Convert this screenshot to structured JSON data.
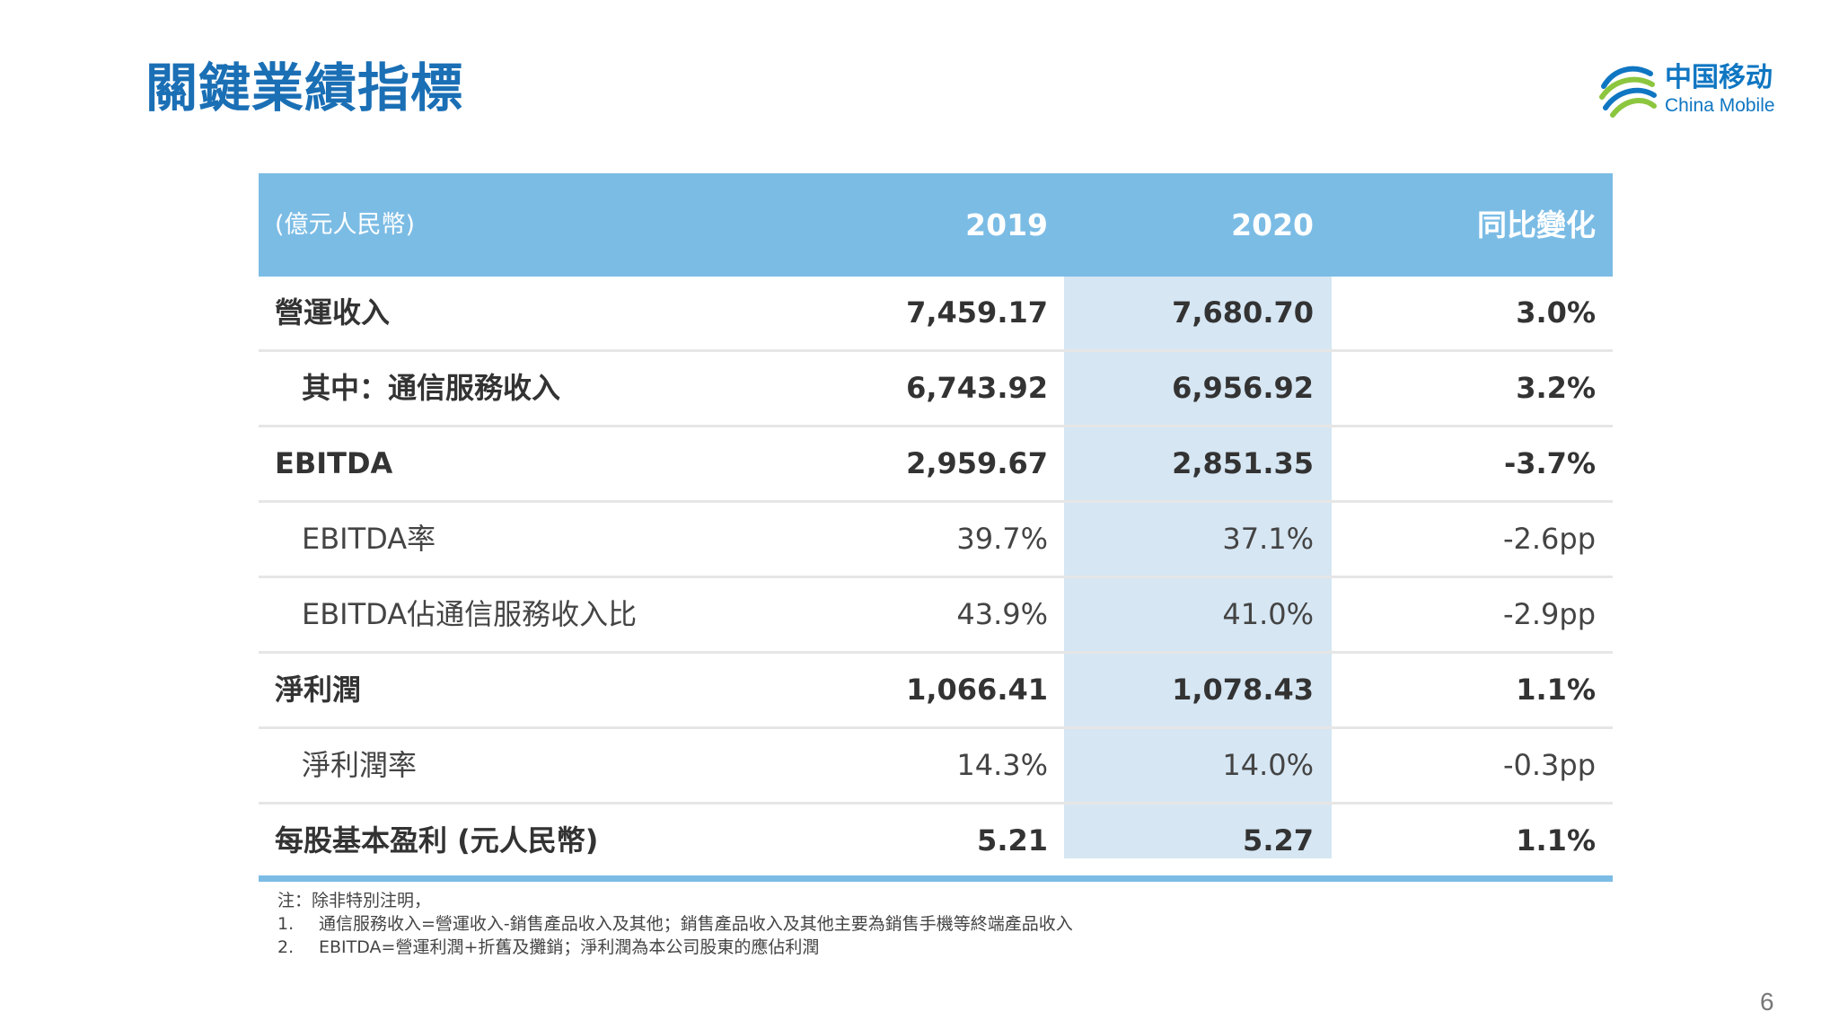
{
  "title": "關鍵業績指標",
  "logo": {
    "cn": "中国移动",
    "en": "China Mobile"
  },
  "table": {
    "unit": "(億元人民幣)",
    "headers": [
      "2019",
      "2020",
      "同比變化"
    ],
    "rows": [
      {
        "label": "營運收入",
        "v2019": "7,459.17",
        "v2020": "7,680.70",
        "yoy": "3.0%",
        "style": "main"
      },
      {
        "label": "其中：通信服務收入",
        "v2019": "6,743.92",
        "v2020": "6,956.92",
        "yoy": "3.2%",
        "style": "sub-bold"
      },
      {
        "label": "EBITDA",
        "v2019": "2,959.67",
        "v2020": "2,851.35",
        "yoy": "-3.7%",
        "style": "main"
      },
      {
        "label": "EBITDA率",
        "v2019": "39.7%",
        "v2020": "37.1%",
        "yoy": "-2.6pp",
        "style": "sub"
      },
      {
        "label": "EBITDA佔通信服務收入比",
        "v2019": "43.9%",
        "v2020": "41.0%",
        "yoy": "-2.9pp",
        "style": "sub"
      },
      {
        "label": "淨利潤",
        "v2019": "1,066.41",
        "v2020": "1,078.43",
        "yoy": "1.1%",
        "style": "main"
      },
      {
        "label": "淨利潤率",
        "v2019": "14.3%",
        "v2020": "14.0%",
        "yoy": "-0.3pp",
        "style": "sub"
      },
      {
        "label": "每股基本盈利 (元人民幣)",
        "v2019": "5.21",
        "v2020": "5.27",
        "yoy": "1.1%",
        "style": "main"
      }
    ]
  },
  "notes": {
    "intro": "注：除非特別注明，",
    "items": [
      {
        "idx": "1.",
        "text": "通信服務收入=營運收入-銷售產品收入及其他；銷售產品收入及其他主要為銷售手機等終端產品收入"
      },
      {
        "idx": "2.",
        "text": "EBITDA=營運利潤+折舊及攤銷；淨利潤為本公司股東的應佔利潤"
      }
    ]
  },
  "page_number": "6",
  "colors": {
    "title": "#1a6fb5",
    "header_bg": "#7bbce5",
    "highlight_col": "#d6e6f3",
    "logo_blue": "#0f76c2",
    "logo_green": "#8cc63f"
  }
}
